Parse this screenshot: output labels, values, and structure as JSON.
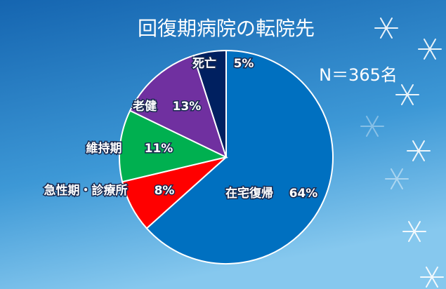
{
  "chart_data": {
    "type": "pie",
    "title": "回復期病院の転院先",
    "annotation": "N＝365名",
    "categories": [
      "在宅復帰",
      "急性期・診療所",
      "維持期",
      "老健",
      "死亡"
    ],
    "values": [
      64,
      8,
      11,
      13,
      5
    ],
    "value_labels": [
      "64%",
      "8%",
      "11%",
      "13%",
      "5%"
    ],
    "colors": [
      "#0070c0",
      "#ff0000",
      "#00b050",
      "#7030a0",
      "#002060"
    ]
  }
}
